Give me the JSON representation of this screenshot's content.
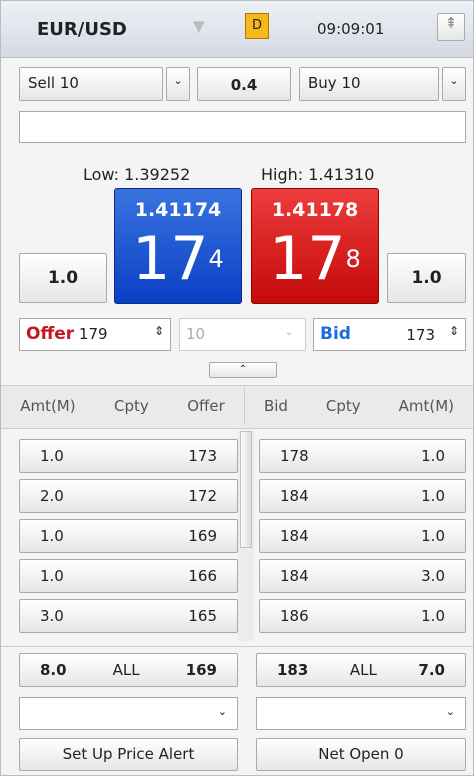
{
  "header": {
    "pair": "EUR/USD",
    "mode": "D",
    "time": "09:09:01"
  },
  "controls": {
    "sell": "Sell 10",
    "spread": "0.4",
    "buy": "Buy 10"
  },
  "range": {
    "low": "Low: 1.39252",
    "high": "High: 1.41310"
  },
  "prices": {
    "sell": {
      "full": "1.41174",
      "big": "17",
      "pip": "4"
    },
    "buy": {
      "full": "1.41178",
      "big": "17",
      "pip": "8"
    }
  },
  "amounts": {
    "left": "1.0",
    "right": "1.0"
  },
  "orders": {
    "offer_label": "Offer",
    "offer_value": "179",
    "quantity": "10",
    "bid_label": "Bid",
    "bid_value": "173"
  },
  "table": {
    "headers_left": [
      "Amt(M)",
      "Cpty",
      "Offer"
    ],
    "headers_right": [
      "Bid",
      "Cpty",
      "Amt(M)"
    ],
    "rows_left": [
      [
        "1.0",
        "173"
      ],
      [
        "2.0",
        "172"
      ],
      [
        "1.0",
        "169"
      ],
      [
        "1.0",
        "166"
      ],
      [
        "3.0",
        "165"
      ]
    ],
    "rows_right": [
      [
        "178",
        "1.0"
      ],
      [
        "184",
        "1.0"
      ],
      [
        "184",
        "1.0"
      ],
      [
        "184",
        "3.0"
      ],
      [
        "186",
        "1.0"
      ]
    ]
  },
  "totals": {
    "left": [
      "8.0",
      "ALL",
      "169"
    ],
    "right": [
      "183",
      "ALL",
      "7.0"
    ]
  },
  "buttons": [
    "Set Up Price Alert",
    "Net Open 0"
  ]
}
